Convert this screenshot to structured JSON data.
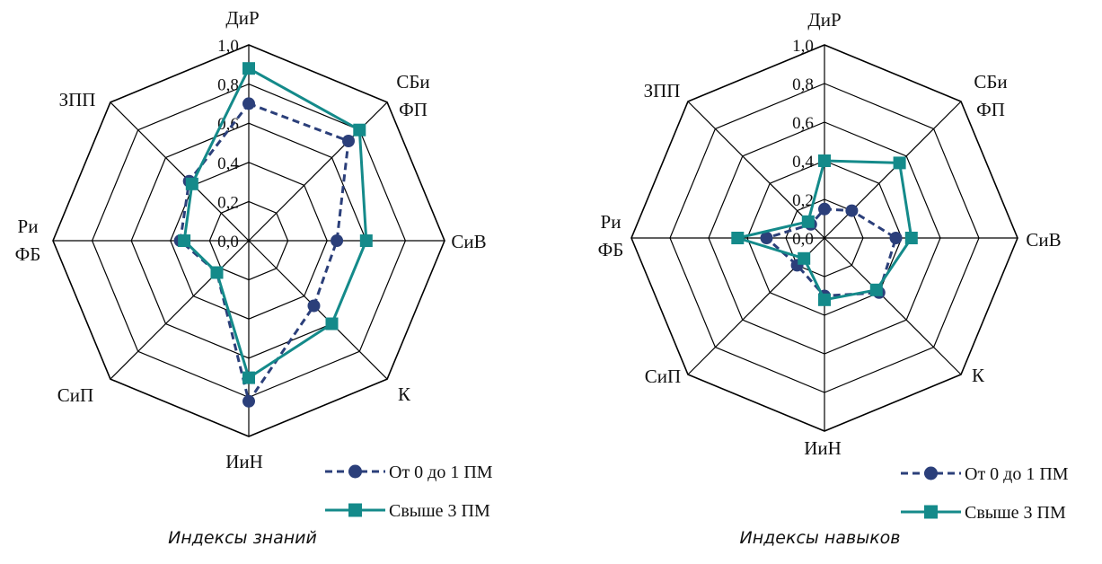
{
  "chart_data": [
    {
      "type": "radar",
      "title": "Индексы знаний",
      "categories": [
        "ДиР",
        "СБи ФП",
        "СиВ",
        "К",
        "ИиН",
        "СиП",
        "Ри ФБ",
        "ЗПП"
      ],
      "range": [
        0.0,
        1.0
      ],
      "ticks": [
        "0,0",
        "0,2",
        "0,4",
        "0,6",
        "0,8",
        "1,0"
      ],
      "tick_values": [
        0,
        0.2,
        0.4,
        0.6,
        0.8,
        1.0
      ],
      "legend_position": "bottom-right",
      "series": [
        {
          "name": "От 0 до 1 ПМ",
          "values": [
            0.7,
            0.72,
            0.45,
            0.47,
            0.82,
            0.23,
            0.35,
            0.43
          ],
          "color": "#2b3f7a",
          "dash": true,
          "marker": "circle"
        },
        {
          "name": "Свыше 3 ПМ",
          "values": [
            0.88,
            0.8,
            0.6,
            0.6,
            0.7,
            0.23,
            0.33,
            0.41
          ],
          "color": "#148a8a",
          "dash": false,
          "marker": "square"
        }
      ]
    },
    {
      "type": "radar",
      "title": "Индексы навыков",
      "categories": [
        "ДиР",
        "СБи ФП",
        "СиВ",
        "К",
        "ИиН",
        "СиП",
        "Ри ФБ",
        "ЗПП"
      ],
      "range": [
        0.0,
        1.0
      ],
      "ticks": [
        "0,0",
        "0,2",
        "0,4",
        "0,6",
        "0,8",
        "1,0"
      ],
      "tick_values": [
        0,
        0.2,
        0.4,
        0.6,
        0.8,
        1.0
      ],
      "legend_position": "bottom-right",
      "series": [
        {
          "name": "От 0 до 1 ПМ",
          "values": [
            0.15,
            0.2,
            0.37,
            0.4,
            0.3,
            0.2,
            0.3,
            0.1
          ],
          "color": "#2b3f7a",
          "dash": true,
          "marker": "circle"
        },
        {
          "name": "Свыше 3 ПМ",
          "values": [
            0.4,
            0.55,
            0.45,
            0.38,
            0.32,
            0.15,
            0.45,
            0.12
          ],
          "color": "#148a8a",
          "dash": false,
          "marker": "square"
        }
      ]
    }
  ]
}
